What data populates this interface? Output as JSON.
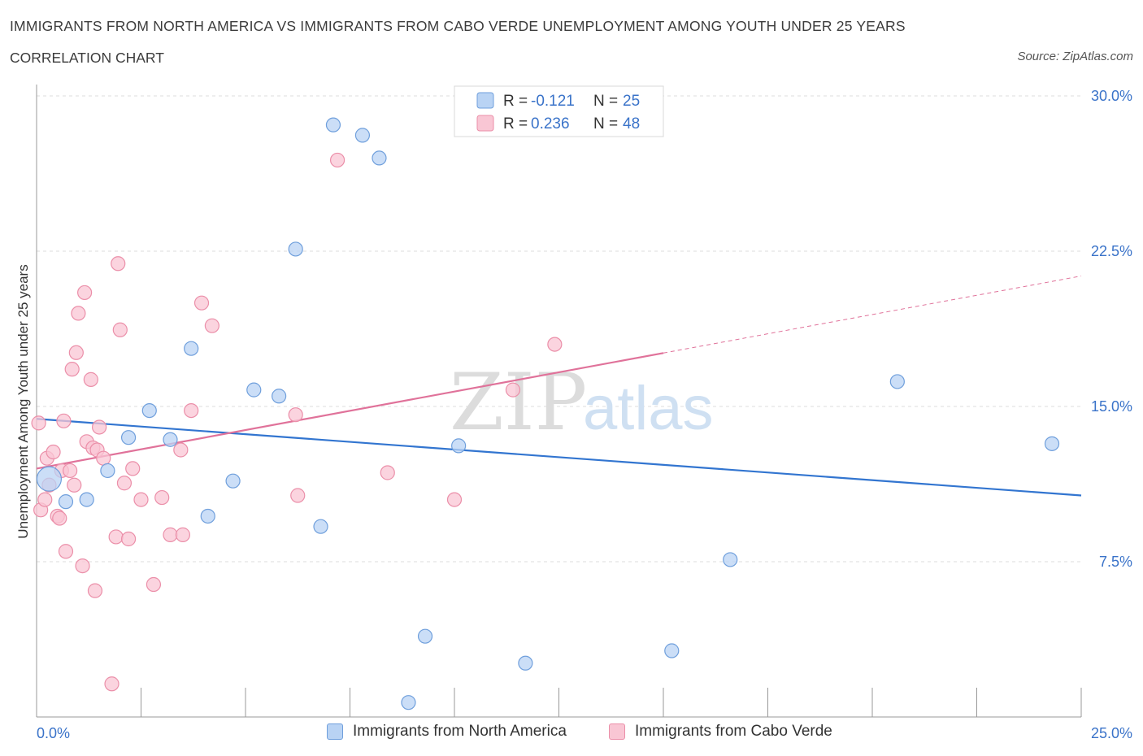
{
  "title": "IMMIGRANTS FROM NORTH AMERICA VS IMMIGRANTS FROM CABO VERDE UNEMPLOYMENT AMONG YOUTH UNDER 25 YEARS",
  "subtitle": "CORRELATION CHART",
  "source": "Source: ZipAtlas.com",
  "watermark": {
    "zip": "ZIP",
    "atlas": "atlas"
  },
  "colors": {
    "blue_fill": "#b9d3f4",
    "blue_stroke": "#6f9fdc",
    "blue_line": "#3275d0",
    "pink_fill": "#f9c6d4",
    "pink_stroke": "#eb8fa9",
    "pink_line": "#e0729a",
    "axis_text": "#3a73c9",
    "grid": "#dddddd"
  },
  "legend": {
    "rows": [
      {
        "r_label": "R =",
        "r_value": "-0.121",
        "n_label": "N =",
        "n_value": "25"
      },
      {
        "r_label": "R =",
        "r_value": "0.236",
        "n_label": "N =",
        "n_value": "48"
      }
    ]
  },
  "chart_data": {
    "type": "scatter",
    "title": "IMMIGRANTS FROM NORTH AMERICA VS IMMIGRANTS FROM CABO VERDE UNEMPLOYMENT AMONG YOUTH UNDER 25 YEARS",
    "xlabel": "",
    "ylabel": "Unemployment Among Youth under 25 years",
    "xlim": [
      0,
      25
    ],
    "ylim": [
      0,
      30
    ],
    "x_tick_labels": [
      "0.0%",
      "25.0%"
    ],
    "y_ticks": [
      7.5,
      15.0,
      22.5,
      30.0
    ],
    "y_tick_labels": [
      "7.5%",
      "15.0%",
      "22.5%",
      "30.0%"
    ],
    "x_minor_ticks": [
      2.5,
      5,
      7.5,
      10,
      12.5,
      15,
      17.5,
      20,
      22.5,
      25
    ],
    "series": [
      {
        "name": "Immigrants from North America",
        "color": "blue",
        "trend": {
          "x0": 0,
          "y0": 14.4,
          "x1": 25,
          "y1": 10.7,
          "solid_to": 25
        },
        "points": [
          {
            "x": 0.3,
            "y": 11.5,
            "big": true
          },
          {
            "x": 0.7,
            "y": 10.4
          },
          {
            "x": 1.2,
            "y": 10.5
          },
          {
            "x": 1.7,
            "y": 11.9
          },
          {
            "x": 2.2,
            "y": 13.5
          },
          {
            "x": 2.7,
            "y": 14.8
          },
          {
            "x": 3.2,
            "y": 13.4
          },
          {
            "x": 3.7,
            "y": 17.8
          },
          {
            "x": 4.1,
            "y": 9.7
          },
          {
            "x": 4.7,
            "y": 11.4
          },
          {
            "x": 5.2,
            "y": 15.8
          },
          {
            "x": 5.8,
            "y": 15.5
          },
          {
            "x": 6.2,
            "y": 22.6
          },
          {
            "x": 6.8,
            "y": 9.2
          },
          {
            "x": 7.1,
            "y": 28.6
          },
          {
            "x": 7.8,
            "y": 28.1
          },
          {
            "x": 8.2,
            "y": 27.0
          },
          {
            "x": 8.9,
            "y": 0.7
          },
          {
            "x": 9.3,
            "y": 3.9
          },
          {
            "x": 10.1,
            "y": 13.1
          },
          {
            "x": 11.7,
            "y": 2.6
          },
          {
            "x": 15.2,
            "y": 3.2
          },
          {
            "x": 16.6,
            "y": 7.6
          },
          {
            "x": 20.6,
            "y": 16.2
          },
          {
            "x": 24.3,
            "y": 13.2
          }
        ]
      },
      {
        "name": "Immigrants from Cabo Verde",
        "color": "pink",
        "trend": {
          "x0": 0,
          "y0": 12.0,
          "x1": 25,
          "y1": 21.3,
          "solid_to": 15.0
        },
        "points": [
          {
            "x": 0.05,
            "y": 14.2
          },
          {
            "x": 0.1,
            "y": 10.0
          },
          {
            "x": 0.2,
            "y": 10.5
          },
          {
            "x": 0.25,
            "y": 12.5
          },
          {
            "x": 0.3,
            "y": 11.2
          },
          {
            "x": 0.4,
            "y": 12.8
          },
          {
            "x": 0.5,
            "y": 9.7
          },
          {
            "x": 0.55,
            "y": 9.6
          },
          {
            "x": 0.6,
            "y": 11.9
          },
          {
            "x": 0.65,
            "y": 14.3
          },
          {
            "x": 0.7,
            "y": 8.0
          },
          {
            "x": 0.8,
            "y": 11.9
          },
          {
            "x": 0.85,
            "y": 16.8
          },
          {
            "x": 0.9,
            "y": 11.2
          },
          {
            "x": 0.95,
            "y": 17.6
          },
          {
            "x": 1.0,
            "y": 19.5
          },
          {
            "x": 1.1,
            "y": 7.3
          },
          {
            "x": 1.15,
            "y": 20.5
          },
          {
            "x": 1.2,
            "y": 13.3
          },
          {
            "x": 1.3,
            "y": 16.3
          },
          {
            "x": 1.35,
            "y": 13.0
          },
          {
            "x": 1.4,
            "y": 6.1
          },
          {
            "x": 1.45,
            "y": 12.9
          },
          {
            "x": 1.5,
            "y": 14.0
          },
          {
            "x": 1.6,
            "y": 12.5
          },
          {
            "x": 1.8,
            "y": 1.6
          },
          {
            "x": 1.9,
            "y": 8.7
          },
          {
            "x": 1.95,
            "y": 21.9
          },
          {
            "x": 2.0,
            "y": 18.7
          },
          {
            "x": 2.1,
            "y": 11.3
          },
          {
            "x": 2.2,
            "y": 8.6
          },
          {
            "x": 2.3,
            "y": 12.0
          },
          {
            "x": 2.5,
            "y": 10.5
          },
          {
            "x": 2.8,
            "y": 6.4
          },
          {
            "x": 3.0,
            "y": 10.6
          },
          {
            "x": 3.2,
            "y": 8.8
          },
          {
            "x": 3.45,
            "y": 12.9
          },
          {
            "x": 3.5,
            "y": 8.8
          },
          {
            "x": 3.7,
            "y": 14.8
          },
          {
            "x": 3.95,
            "y": 20.0
          },
          {
            "x": 4.2,
            "y": 18.9
          },
          {
            "x": 6.2,
            "y": 14.6
          },
          {
            "x": 6.25,
            "y": 10.7
          },
          {
            "x": 7.2,
            "y": 26.9
          },
          {
            "x": 8.4,
            "y": 11.8
          },
          {
            "x": 10.0,
            "y": 10.5
          },
          {
            "x": 11.4,
            "y": 15.8
          },
          {
            "x": 12.4,
            "y": 18.0
          }
        ]
      }
    ]
  }
}
